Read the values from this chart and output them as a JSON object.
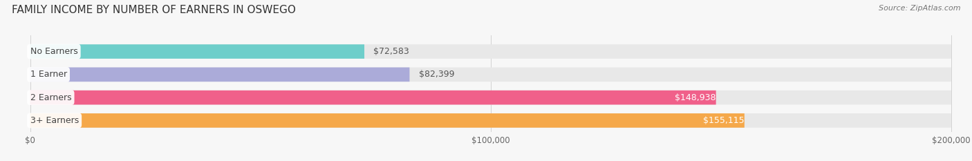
{
  "title": "FAMILY INCOME BY NUMBER OF EARNERS IN OSWEGO",
  "source": "Source: ZipAtlas.com",
  "categories": [
    "No Earners",
    "1 Earner",
    "2 Earners",
    "3+ Earners"
  ],
  "values": [
    72583,
    82399,
    148938,
    155115
  ],
  "bar_colors": [
    "#6ECECA",
    "#ABABD9",
    "#F0608A",
    "#F5A84A"
  ],
  "bar_bg_color": "#E8E8E8",
  "max_value": 200000,
  "xlabel_ticks": [
    0,
    100000,
    200000
  ],
  "xlabel_labels": [
    "$0",
    "$100,000",
    "$200,000"
  ],
  "value_labels": [
    "$72,583",
    "$82,399",
    "$148,938",
    "$155,115"
  ],
  "background_color": "#F7F7F7",
  "title_fontsize": 11,
  "label_fontsize": 9,
  "value_fontsize": 9,
  "tick_fontsize": 8.5
}
